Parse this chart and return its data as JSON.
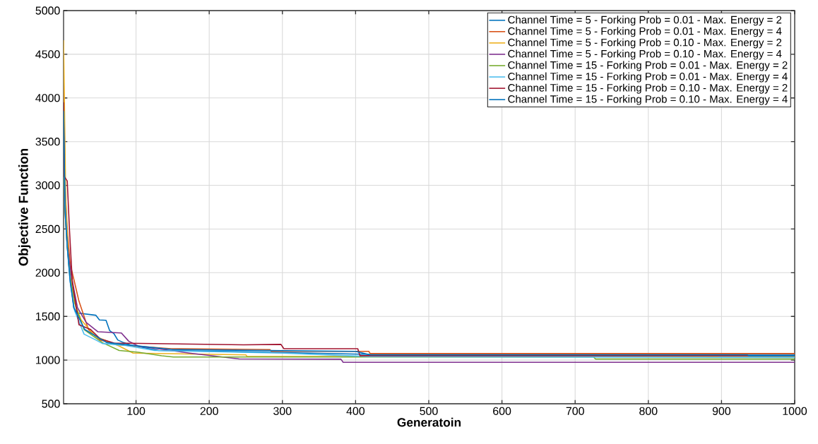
{
  "chart_data": {
    "type": "line",
    "xlabel": "Generatoin",
    "ylabel": "Objective Function",
    "xlim": [
      1,
      1000
    ],
    "ylim": [
      500,
      5000
    ],
    "xticks": [
      100,
      200,
      300,
      400,
      500,
      600,
      700,
      800,
      900,
      1000
    ],
    "yticks": [
      500,
      1000,
      1500,
      2000,
      2500,
      3000,
      3500,
      4000,
      4500,
      5000
    ],
    "grid": true,
    "legend": "top right",
    "marker": "none",
    "line_style": "solid",
    "series": [
      {
        "name": "Channel Time =  5 - Forking Prob = 0.01 - Max. Energy = 2",
        "color": "#0072bd",
        "x": [
          1,
          3,
          6,
          10,
          15,
          19,
          45,
          50,
          59,
          64,
          70,
          75,
          83,
          93,
          131,
          250,
          420,
          1000
        ],
        "values": [
          3900,
          2900,
          2350,
          1950,
          1600,
          1540,
          1513,
          1460,
          1455,
          1337,
          1300,
          1230,
          1200,
          1170,
          1110,
          1095,
          1065,
          1065
        ]
      },
      {
        "name": "Channel Time =  5 - Forking Prob = 0.01 - Max. Energy = 4",
        "color": "#d95319",
        "x": [
          1,
          3,
          6,
          10,
          16,
          22,
          35,
          51,
          77,
          148,
          283,
          285,
          418,
          420,
          1000
        ],
        "values": [
          4130,
          3000,
          2500,
          2100,
          1890,
          1675,
          1350,
          1230,
          1175,
          1130,
          1120,
          1100,
          1100,
          1075,
          1075
        ]
      },
      {
        "name": "Channel Time =  5 - Forking Prob = 0.10 - Max. Energy = 2",
        "color": "#edb120",
        "x": [
          1,
          2,
          4,
          8,
          14,
          25,
          45,
          77,
          96,
          250,
          252,
          1000
        ],
        "values": [
          4660,
          4050,
          2800,
          2100,
          1700,
          1460,
          1270,
          1160,
          1080,
          1060,
          1040,
          1040
        ]
      },
      {
        "name": "Channel Time =  5 - Forking Prob = 0.10 - Max. Energy = 4",
        "color": "#7e2f8e",
        "x": [
          1,
          3,
          6,
          12,
          20,
          32,
          48,
          80,
          90,
          103,
          173,
          241,
          380,
          383,
          1000
        ],
        "values": [
          3500,
          2700,
          2300,
          1945,
          1600,
          1430,
          1324,
          1310,
          1216,
          1160,
          1080,
          1013,
          1010,
          975,
          975
        ]
      },
      {
        "name": "Channel Time = 15 - Forking Prob = 0.01 - Max. Energy = 2",
        "color": "#77ac30",
        "x": [
          1,
          3,
          6,
          10,
          18,
          29,
          54,
          77,
          103,
          135,
          151,
          725,
          728,
          1000
        ],
        "values": [
          3400,
          2700,
          2300,
          1950,
          1600,
          1350,
          1200,
          1110,
          1090,
          1050,
          1035,
          1035,
          1012,
          1012
        ]
      },
      {
        "name": "Channel Time = 15 - Forking Prob = 0.01 - Max. Energy = 4",
        "color": "#4dbeee",
        "x": [
          1,
          3,
          6,
          10,
          16,
          29,
          45,
          54,
          86,
          125,
          300,
          420,
          1000
        ],
        "values": [
          3700,
          2800,
          2300,
          1900,
          1567,
          1297,
          1230,
          1190,
          1167,
          1110,
          1080,
          1040,
          1030
        ]
      },
      {
        "name": "Channel Time = 15 - Forking Prob = 0.10 - Max. Energy = 2",
        "color": "#a2142f",
        "x": [
          1,
          2,
          6,
          9,
          13,
          22,
          38,
          51,
          70,
          247,
          298,
          302,
          403,
          406,
          1000
        ],
        "values": [
          3950,
          3100,
          3050,
          2500,
          1890,
          1405,
          1350,
          1243,
          1195,
          1175,
          1180,
          1130,
          1130,
          1050,
          1050
        ]
      },
      {
        "name": "Channel Time = 15 - Forking Prob = 0.10 - Max. Energy = 4",
        "color": "#0072bd",
        "x": [
          1,
          3,
          6,
          10,
          15,
          30,
          60,
          150,
          400,
          420,
          935,
          937,
          1000
        ],
        "values": [
          3850,
          2750,
          2300,
          1900,
          1600,
          1350,
          1200,
          1120,
          1100,
          1060,
          1060,
          1050,
          1050
        ]
      }
    ]
  }
}
